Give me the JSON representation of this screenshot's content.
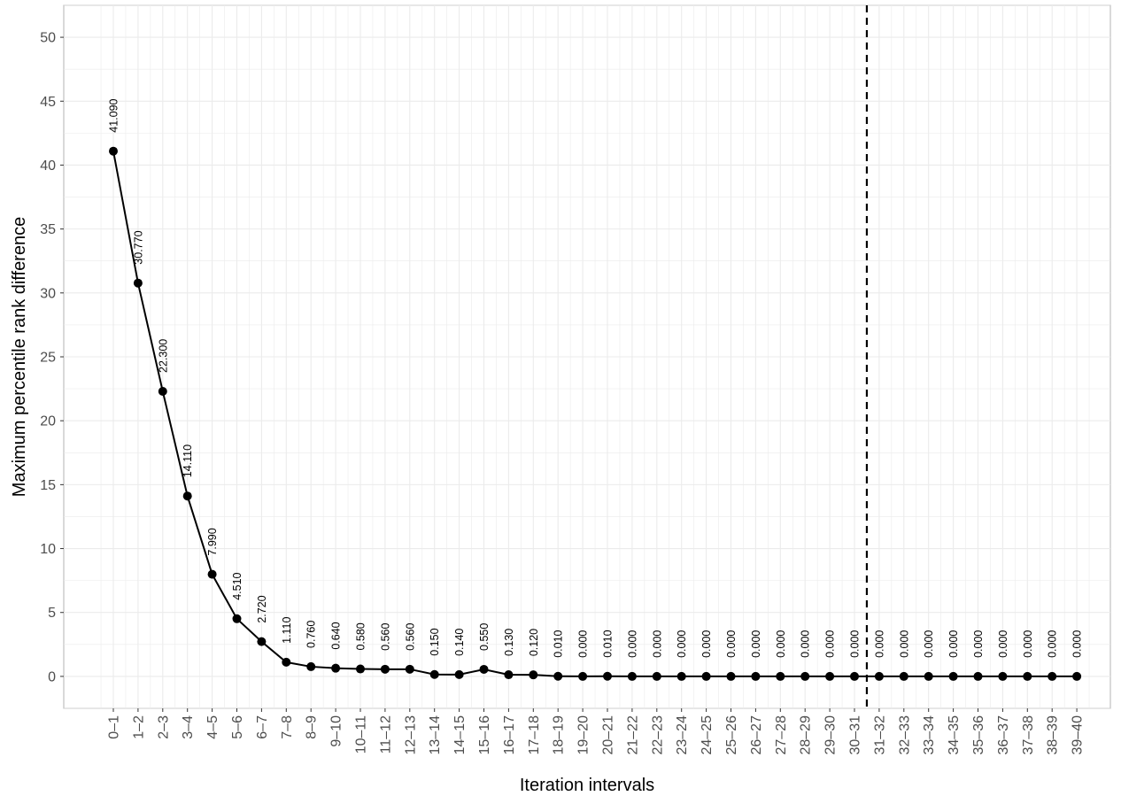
{
  "chart_data": {
    "type": "line",
    "title": "",
    "xlabel": "Iteration intervals",
    "ylabel": "Maximum percentile rank difference",
    "ylim": [
      -2.5,
      52.5
    ],
    "yticks": [
      0,
      5,
      10,
      15,
      20,
      25,
      30,
      35,
      40,
      45,
      50
    ],
    "grid": true,
    "categories": [
      "0–1",
      "1–2",
      "2–3",
      "3–4",
      "4–5",
      "5–6",
      "6–7",
      "7–8",
      "8–9",
      "9–10",
      "10–11",
      "11–12",
      "12–13",
      "13–14",
      "14–15",
      "15–16",
      "16–17",
      "17–18",
      "18–19",
      "19–20",
      "20–21",
      "21–22",
      "22–23",
      "23–24",
      "24–25",
      "25–26",
      "26–27",
      "27–28",
      "28–29",
      "29–30",
      "30–31",
      "31–32",
      "32–33",
      "33–34",
      "34–35",
      "35–36",
      "36–37",
      "37–38",
      "38–39",
      "39–40"
    ],
    "values": [
      41.09,
      30.77,
      22.3,
      14.11,
      7.99,
      4.51,
      2.72,
      1.11,
      0.76,
      0.64,
      0.58,
      0.56,
      0.56,
      0.15,
      0.14,
      0.55,
      0.13,
      0.12,
      0.01,
      0.0,
      0.01,
      0.0,
      0.0,
      0.0,
      0.0,
      0.0,
      0.0,
      0.0,
      0.0,
      0.0,
      0.0,
      0.0,
      0.0,
      0.0,
      0.0,
      0.0,
      0.0,
      0.0,
      0.0,
      0.0
    ],
    "labels": [
      "41.090",
      "30.770",
      "22.300",
      "14.110",
      "7.990",
      "4.510",
      "2.720",
      "1.110",
      "0.760",
      "0.640",
      "0.580",
      "0.560",
      "0.560",
      "0.150",
      "0.140",
      "0.550",
      "0.130",
      "0.120",
      "0.010",
      "0.000",
      "0.010",
      "0.000",
      "0.000",
      "0.000",
      "0.000",
      "0.000",
      "0.000",
      "0.000",
      "0.000",
      "0.000",
      "0.000",
      "0.000",
      "0.000",
      "0.000",
      "0.000",
      "0.000",
      "0.000",
      "0.000",
      "0.000",
      "0.000"
    ],
    "vline": {
      "between": [
        "30–31",
        "31–32"
      ],
      "style": "dashed"
    }
  }
}
